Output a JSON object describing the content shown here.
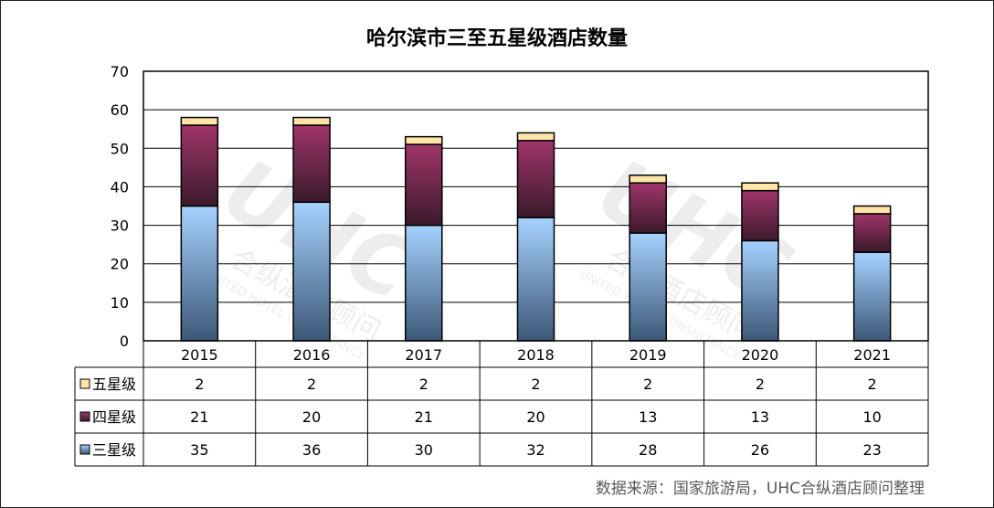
{
  "title": "哈尔滨市三至五星级酒店数量",
  "source": "数据来源：国家旅游局，UHC合纵酒店顾问整理",
  "watermark": {
    "logo": "UHC",
    "text_cn": "合纵酒店顾问",
    "text_en": "UNITED HOTEL CONSULTANCY"
  },
  "colors": {
    "five_star": "#ffe5a8",
    "four_star_top": "#a0356a",
    "four_star_bottom": "#3a1a2a",
    "three_star_top": "#a6d2ff",
    "three_star_bottom": "#3c5877"
  },
  "chart_data": {
    "type": "bar",
    "stacked": true,
    "title": "哈尔滨市三至五星级酒店数量",
    "categories": [
      "2015",
      "2016",
      "2017",
      "2018",
      "2019",
      "2020",
      "2021"
    ],
    "series": [
      {
        "name": "三星级",
        "values": [
          35,
          36,
          30,
          32,
          28,
          26,
          23
        ]
      },
      {
        "name": "四星级",
        "values": [
          21,
          20,
          21,
          20,
          13,
          13,
          10
        ]
      },
      {
        "name": "五星级",
        "values": [
          2,
          2,
          2,
          2,
          2,
          2,
          2
        ]
      }
    ],
    "table_rows_order": [
      "五星级",
      "四星级",
      "三星级"
    ],
    "ylim": [
      0,
      70
    ],
    "yticks": [
      0,
      10,
      20,
      30,
      40,
      50,
      60,
      70
    ],
    "grid": true,
    "legend": "data-table"
  }
}
